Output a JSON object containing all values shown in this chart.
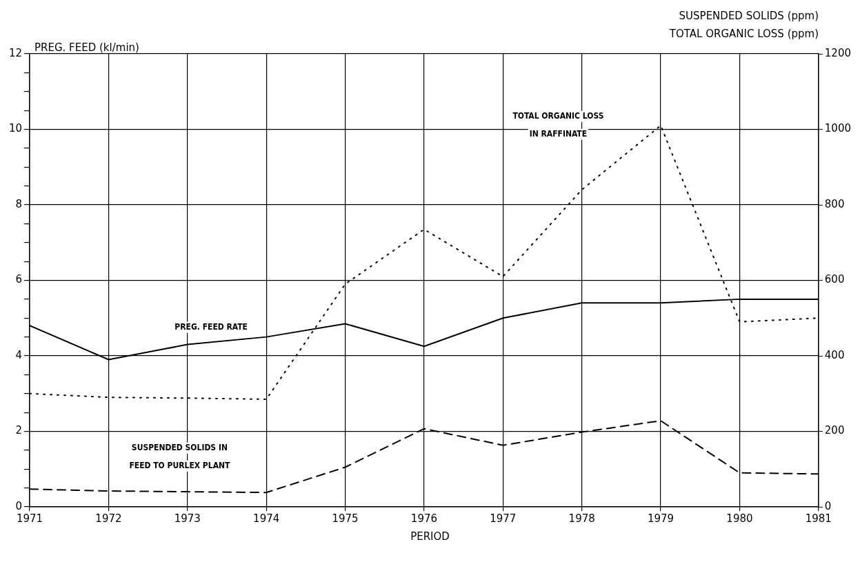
{
  "chart_data": {
    "type": "line",
    "xlabel": "PERIOD",
    "ylabel": "PREG. FEED (kl/min)",
    "y2label": "SUSPENDED SOLIDS (ppm)\nTOTAL ORGANIC LOSS (ppm)",
    "x": [
      1971,
      1972,
      1973,
      1974,
      1975,
      1976,
      1977,
      1978,
      1979,
      1980,
      1981
    ],
    "series": [
      {
        "color": "#000000",
        "line_style": "solid",
        "values": [
          4.8,
          3.9,
          4.3,
          4.5,
          4.85,
          4.25,
          5.0,
          5.4,
          5.4,
          5.5,
          5.5
        ]
      },
      {
        "color": "#000000",
        "line_style": "dotted",
        "axis": "y2",
        "values": [
          300,
          290,
          288,
          285,
          590,
          735,
          610,
          840,
          1010,
          490,
          500
        ]
      },
      {
        "color": "#000000",
        "line_style": "dashed",
        "axis": "y2",
        "values": [
          47,
          42,
          40,
          38,
          105,
          207,
          163,
          198,
          228,
          90,
          87
        ]
      }
    ],
    "annotations": [
      "PREG. FEED RATE",
      "TOTAL ORGANIC LOSS\nIN RAFFINATE",
      "SUSPENDED SOLIDS IN\nFEED TO PURLEX PLANT"
    ],
    "xlim": [
      1971,
      1981
    ],
    "xticks": [
      1971,
      1972,
      1973,
      1974,
      1975,
      1976,
      1977,
      1978,
      1979,
      1980,
      1981
    ],
    "ylim": [
      0,
      12
    ],
    "yticks": [
      0,
      {
        "value": 0.5,
        "label": null
      },
      {
        "value": 1,
        "label": null
      },
      {
        "value": 1.5,
        "label": null
      },
      2,
      {
        "value": 2.5,
        "label": null
      },
      {
        "value": 3,
        "label": null
      },
      {
        "value": 3.5,
        "label": null
      },
      4,
      {
        "value": 4.5,
        "label": null
      },
      {
        "value": 5,
        "label": null
      },
      {
        "value": 5.5,
        "label": null
      },
      6,
      {
        "value": 6.5,
        "label": null
      },
      {
        "value": 7,
        "label": null
      },
      {
        "value": 7.5,
        "label": null
      },
      8,
      {
        "value": 8.5,
        "label": null
      },
      {
        "value": 9,
        "label": null
      },
      {
        "value": 9.5,
        "label": null
      },
      10,
      {
        "value": 10.5,
        "label": null
      },
      {
        "value": 11,
        "label": null
      },
      {
        "value": 11.5,
        "label": null
      },
      12
    ],
    "y2lim": [
      0,
      1200
    ],
    "y2ticks": [
      0,
      200,
      400,
      600,
      800,
      1000,
      1200
    ],
    "grid": true,
    "legend": false,
    "marker": "none"
  }
}
